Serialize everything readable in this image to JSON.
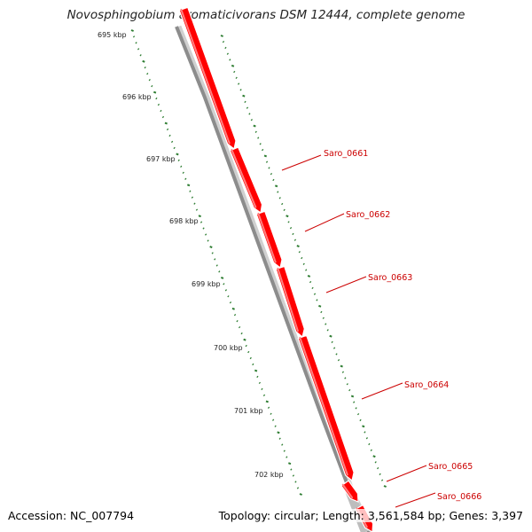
{
  "map": {
    "title": "Novosphingobium aromaticivorans DSM 12444, complete genome",
    "accession_text": "Accession: NC_007794",
    "summary_text": "Topology: circular; Length: 3,561,584 bp; Genes: 3,397"
  },
  "ticks": [
    "695 kbp",
    "696 kbp",
    "697 kbp",
    "698 kbp",
    "699 kbp",
    "700 kbp",
    "701 kbp",
    "702 kbp"
  ],
  "genes": [
    "Saro_0661",
    "Saro_0662",
    "Saro_0663",
    "Saro_0664",
    "Saro_0665",
    "Saro_0666"
  ],
  "colors": {
    "gene_fill": "#ff0000",
    "gene_highlight": "#ff8080",
    "gene_label": "#cc0000",
    "backbone": "#8c8c8c",
    "backbone_light": "#d0d0d0",
    "tick": "#2e7d32",
    "text": "#222222"
  }
}
